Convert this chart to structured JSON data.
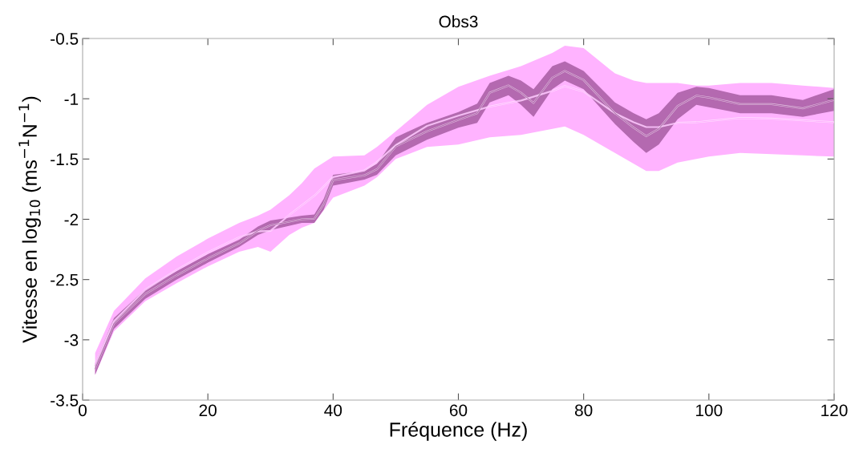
{
  "chart_data": {
    "type": "line",
    "title": "Obs3",
    "xlabel": "Fréquence (Hz)",
    "ylabel": "Vitesse en log$_{10}$ (ms$^{−1}$N$^{−1}$)",
    "xlim": [
      0,
      120
    ],
    "xticks": [
      0,
      20,
      40,
      60,
      80,
      100,
      120
    ],
    "ylim": [
      -3.5,
      -0.5
    ],
    "yticks": [
      -3.5,
      -3,
      -2.5,
      -2,
      -1.5,
      -1,
      -0.5
    ],
    "grid": false,
    "legend": false,
    "series": [
      {
        "color": "#ffb3ff",
        "x": [
          2,
          5,
          10,
          15,
          20,
          25,
          28,
          30,
          33,
          35,
          37,
          40,
          45,
          47,
          50,
          55,
          60,
          65,
          70,
          75,
          77,
          80,
          85,
          88,
          90,
          92,
          95,
          98,
          100,
          105,
          110,
          115,
          120
        ],
        "lower": [
          -3.29,
          -2.93,
          -2.68,
          -2.53,
          -2.39,
          -2.27,
          -2.23,
          -2.27,
          -2.13,
          -2.07,
          -2.03,
          -1.82,
          -1.72,
          -1.65,
          -1.5,
          -1.4,
          -1.38,
          -1.32,
          -1.3,
          -1.25,
          -1.23,
          -1.3,
          -1.45,
          -1.54,
          -1.6,
          -1.6,
          -1.53,
          -1.5,
          -1.48,
          -1.45,
          -1.46,
          -1.47,
          -1.48
        ],
        "upper": [
          -3.11,
          -2.76,
          -2.49,
          -2.31,
          -2.16,
          -2.03,
          -1.97,
          -1.92,
          -1.8,
          -1.7,
          -1.58,
          -1.48,
          -1.47,
          -1.4,
          -1.27,
          -1.05,
          -0.9,
          -0.81,
          -0.73,
          -0.62,
          -0.56,
          -0.58,
          -0.79,
          -0.85,
          -0.87,
          -0.87,
          -0.87,
          -0.89,
          -0.89,
          -0.87,
          -0.87,
          -0.89,
          -0.91
        ],
        "values": [
          -3.2,
          -2.845,
          -2.585,
          -2.42,
          -2.275,
          -2.15,
          -2.1,
          -2.095,
          -1.965,
          -1.885,
          -1.805,
          -1.65,
          -1.595,
          -1.525,
          -1.385,
          -1.225,
          -1.14,
          -1.065,
          -1.015,
          -0.935,
          -0.895,
          -0.94,
          -1.12,
          -1.195,
          -1.235,
          -1.235,
          -1.2,
          -1.195,
          -1.185,
          -1.16,
          -1.165,
          -1.18,
          -1.195
        ]
      },
      {
        "color": "#b469b0",
        "x": [
          2,
          5,
          10,
          15,
          20,
          25,
          28,
          30,
          35,
          37,
          38.5,
          40,
          45,
          47,
          50,
          55,
          60,
          63,
          65,
          68,
          70,
          72,
          75,
          77,
          80,
          85,
          88,
          90,
          92,
          95,
          98,
          100,
          105,
          110,
          115,
          120
        ],
        "lower": [
          -3.29,
          -2.91,
          -2.66,
          -2.5,
          -2.36,
          -2.23,
          -2.13,
          -2.09,
          -2.03,
          -2.03,
          -1.92,
          -1.72,
          -1.67,
          -1.63,
          -1.47,
          -1.34,
          -1.24,
          -1.2,
          -1.03,
          -0.97,
          -1.05,
          -1.15,
          -0.92,
          -0.85,
          -0.92,
          -1.21,
          -1.36,
          -1.45,
          -1.38,
          -1.17,
          -1.05,
          -1.07,
          -1.12,
          -1.12,
          -1.15,
          -1.1
        ],
        "upper": [
          -3.19,
          -2.82,
          -2.58,
          -2.43,
          -2.29,
          -2.17,
          -2.06,
          -2.01,
          -1.97,
          -1.96,
          -1.83,
          -1.63,
          -1.6,
          -1.54,
          -1.32,
          -1.2,
          -1.11,
          -1.04,
          -0.87,
          -0.81,
          -0.85,
          -0.92,
          -0.73,
          -0.69,
          -0.77,
          -1.03,
          -1.12,
          -1.17,
          -1.12,
          -0.95,
          -0.9,
          -0.91,
          -0.97,
          -0.97,
          -1.01,
          -0.92
        ],
        "values": [
          -3.24,
          -2.865,
          -2.62,
          -2.465,
          -2.325,
          -2.2,
          -2.095,
          -2.05,
          -2.0,
          -1.995,
          -1.875,
          -1.675,
          -1.635,
          -1.585,
          -1.395,
          -1.27,
          -1.175,
          -1.12,
          -0.95,
          -0.89,
          -0.95,
          -1.035,
          -0.825,
          -0.77,
          -0.845,
          -1.12,
          -1.24,
          -1.31,
          -1.25,
          -1.06,
          -0.975,
          -0.99,
          -1.045,
          -1.045,
          -1.08,
          -1.01
        ]
      }
    ]
  }
}
